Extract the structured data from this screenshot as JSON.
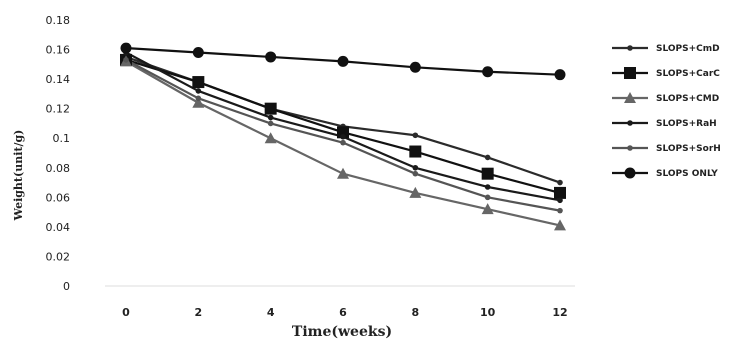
{
  "chart_data": {
    "type": "line",
    "xlabel": "Time(weeks)",
    "ylabel": "Weight(unit/g)",
    "x": [
      0,
      2,
      4,
      6,
      8,
      10,
      12
    ],
    "x_ticks": [
      "0",
      "2",
      "4",
      "6",
      "8",
      "10",
      "12"
    ],
    "y_ticks": [
      "0",
      "0.02",
      "0.04",
      "0.06",
      "0.08",
      "0.1",
      "0.12",
      "0.14",
      "0.16",
      "0.18"
    ],
    "ylim": [
      0,
      0.18
    ],
    "xlim": [
      0,
      12
    ],
    "grid": false,
    "legend_position": "right",
    "series": [
      {
        "name": "SLOPS+CmD",
        "values": [
          0.155,
          0.138,
          0.12,
          0.108,
          0.102,
          0.087,
          0.07
        ],
        "marker": "small",
        "color": "#2b2b2b"
      },
      {
        "name": "SLOPS+CarC",
        "values": [
          0.153,
          0.138,
          0.12,
          0.104,
          0.091,
          0.076,
          0.063
        ],
        "marker": "square",
        "color": "#111111"
      },
      {
        "name": "SLOPS+CMD",
        "values": [
          0.152,
          0.124,
          0.1,
          0.076,
          0.063,
          0.052,
          0.041
        ],
        "marker": "triangle",
        "color": "#666666"
      },
      {
        "name": "SLOPS+RaH",
        "values": [
          0.158,
          0.132,
          0.114,
          0.101,
          0.08,
          0.067,
          0.058
        ],
        "marker": "small",
        "color": "#1a1a1a"
      },
      {
        "name": "SLOPS+SorH",
        "values": [
          0.153,
          0.127,
          0.11,
          0.097,
          0.076,
          0.06,
          0.051
        ],
        "marker": "small",
        "color": "#555555"
      },
      {
        "name": "SLOPS ONLY",
        "values": [
          0.161,
          0.158,
          0.155,
          0.152,
          0.148,
          0.145,
          0.143
        ],
        "marker": "circle",
        "color": "#111111"
      }
    ]
  }
}
